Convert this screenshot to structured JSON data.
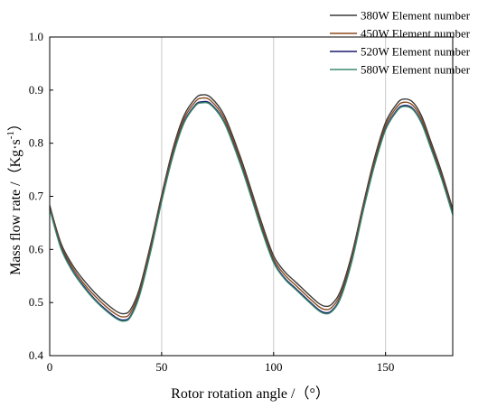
{
  "chart_data": {
    "type": "line",
    "title": "",
    "xlabel": "Rotor rotation angle /（°）",
    "ylabel_main": "Mass flow rate /（Kg·s",
    "ylabel_sup": "-1",
    "ylabel_close": "）",
    "xlim": [
      0,
      180
    ],
    "ylim": [
      0.4,
      1.0
    ],
    "x_ticks": [
      "0",
      "50",
      "100",
      "150"
    ],
    "y_ticks": [
      "0.4",
      "0.5",
      "0.6",
      "0.7",
      "0.8",
      "0.9",
      "1.0"
    ],
    "grid": "vertical lines at x = 50, 100, 150",
    "legend_position": "top-right",
    "x": [
      0,
      5,
      10,
      15,
      20,
      25,
      30,
      33,
      36,
      40,
      45,
      50,
      55,
      60,
      65,
      68,
      72,
      78,
      85,
      90,
      95,
      100,
      105,
      110,
      115,
      120,
      123,
      126,
      130,
      135,
      140,
      145,
      150,
      155,
      158,
      162,
      166,
      170,
      175,
      180
    ],
    "series": [
      {
        "name": "380W Element number",
        "color": "#3a3a3a",
        "values": [
          0.683,
          0.612,
          0.572,
          0.543,
          0.519,
          0.499,
          0.483,
          0.479,
          0.486,
          0.525,
          0.608,
          0.702,
          0.789,
          0.852,
          0.884,
          0.891,
          0.886,
          0.852,
          0.776,
          0.712,
          0.646,
          0.588,
          0.558,
          0.538,
          0.518,
          0.499,
          0.493,
          0.497,
          0.523,
          0.592,
          0.684,
          0.771,
          0.839,
          0.874,
          0.883,
          0.878,
          0.852,
          0.806,
          0.746,
          0.676
        ]
      },
      {
        "name": "450W Element number",
        "color": "#8b4a1c",
        "values": [
          0.68,
          0.608,
          0.567,
          0.537,
          0.513,
          0.493,
          0.477,
          0.473,
          0.48,
          0.519,
          0.602,
          0.697,
          0.783,
          0.846,
          0.878,
          0.885,
          0.88,
          0.846,
          0.77,
          0.706,
          0.64,
          0.582,
          0.552,
          0.532,
          0.512,
          0.493,
          0.487,
          0.491,
          0.517,
          0.586,
          0.679,
          0.765,
          0.833,
          0.868,
          0.877,
          0.872,
          0.846,
          0.8,
          0.74,
          0.671
        ]
      },
      {
        "name": "520W Element number",
        "color": "#1a1a6e",
        "values": [
          0.677,
          0.604,
          0.562,
          0.532,
          0.507,
          0.487,
          0.471,
          0.467,
          0.474,
          0.513,
          0.596,
          0.692,
          0.777,
          0.84,
          0.872,
          0.878,
          0.874,
          0.84,
          0.764,
          0.7,
          0.634,
          0.577,
          0.546,
          0.526,
          0.506,
          0.487,
          0.481,
          0.485,
          0.511,
          0.58,
          0.674,
          0.759,
          0.827,
          0.862,
          0.871,
          0.866,
          0.84,
          0.795,
          0.735,
          0.667
        ]
      },
      {
        "name": "580W Element number",
        "color": "#3a8a6e",
        "values": [
          0.676,
          0.602,
          0.56,
          0.53,
          0.505,
          0.485,
          0.469,
          0.465,
          0.472,
          0.511,
          0.594,
          0.69,
          0.775,
          0.838,
          0.87,
          0.876,
          0.872,
          0.838,
          0.762,
          0.698,
          0.632,
          0.575,
          0.544,
          0.524,
          0.504,
          0.485,
          0.479,
          0.483,
          0.509,
          0.578,
          0.672,
          0.757,
          0.825,
          0.86,
          0.869,
          0.864,
          0.838,
          0.793,
          0.733,
          0.665
        ]
      }
    ]
  }
}
